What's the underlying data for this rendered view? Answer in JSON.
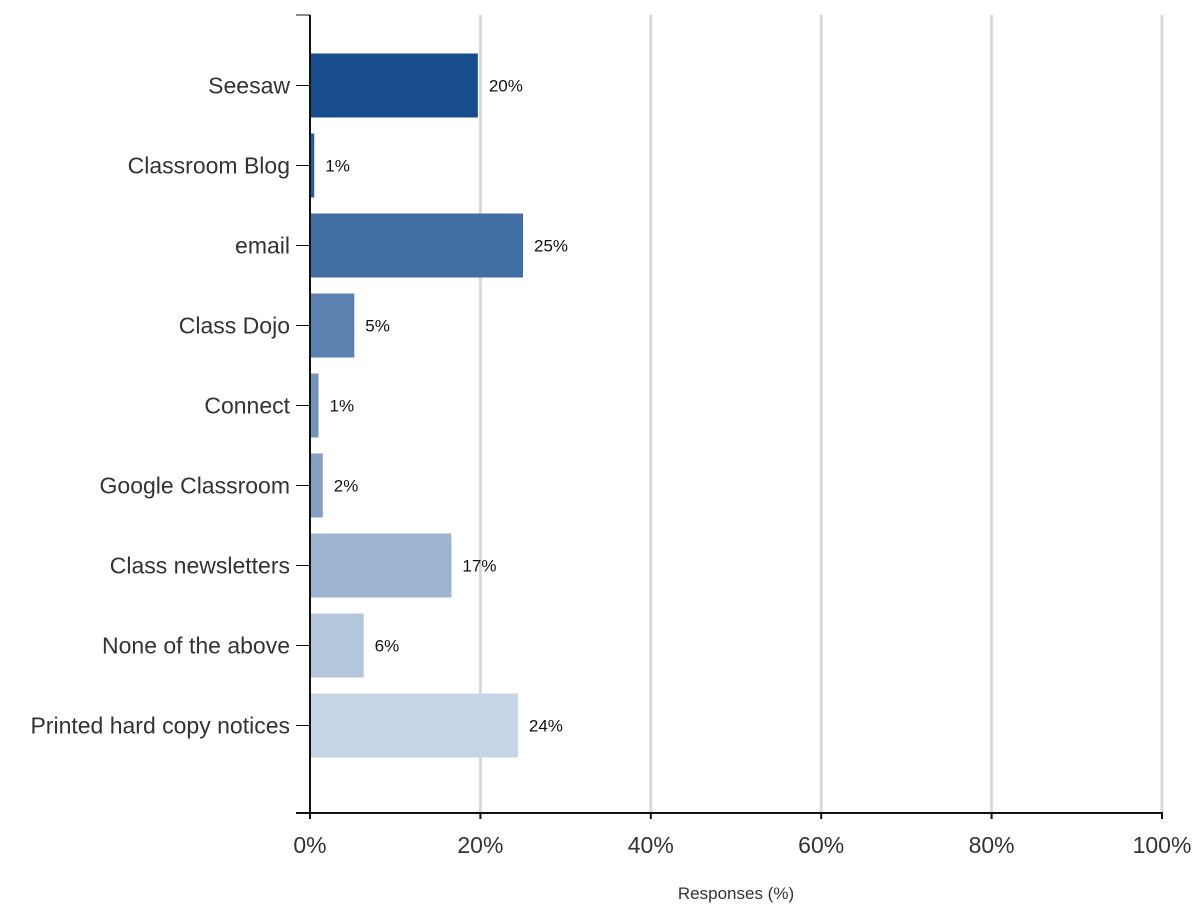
{
  "chart_data": {
    "type": "bar",
    "orientation": "horizontal",
    "categories": [
      "Seesaw",
      "Classroom Blog",
      "email",
      "Class Dojo",
      "Connect",
      "Google Classroom",
      "Class newsletters",
      "None of the above",
      "Printed hard copy notices"
    ],
    "values": [
      19.7,
      0.5,
      25.0,
      5.2,
      1.0,
      1.5,
      16.6,
      6.3,
      24.4
    ],
    "value_labels": [
      "20%",
      "1%",
      "25%",
      "5%",
      "1%",
      "2%",
      "17%",
      "6%",
      "24%"
    ],
    "colors": [
      "#174d8c",
      "#2a5c96",
      "#416ea3",
      "#5a81af",
      "#7394bd",
      "#869fc5",
      "#9cb4cf",
      "#b4c6dc",
      "#c6d5e6"
    ],
    "xticks": [
      0,
      20,
      40,
      60,
      80,
      100
    ],
    "xtick_labels": [
      "0%",
      "20%",
      "40%",
      "60%",
      "80%",
      "100%"
    ],
    "xlim": [
      0,
      100
    ],
    "xlabel": "Responses (%)",
    "ylabel": "",
    "title": "",
    "grid": true
  }
}
